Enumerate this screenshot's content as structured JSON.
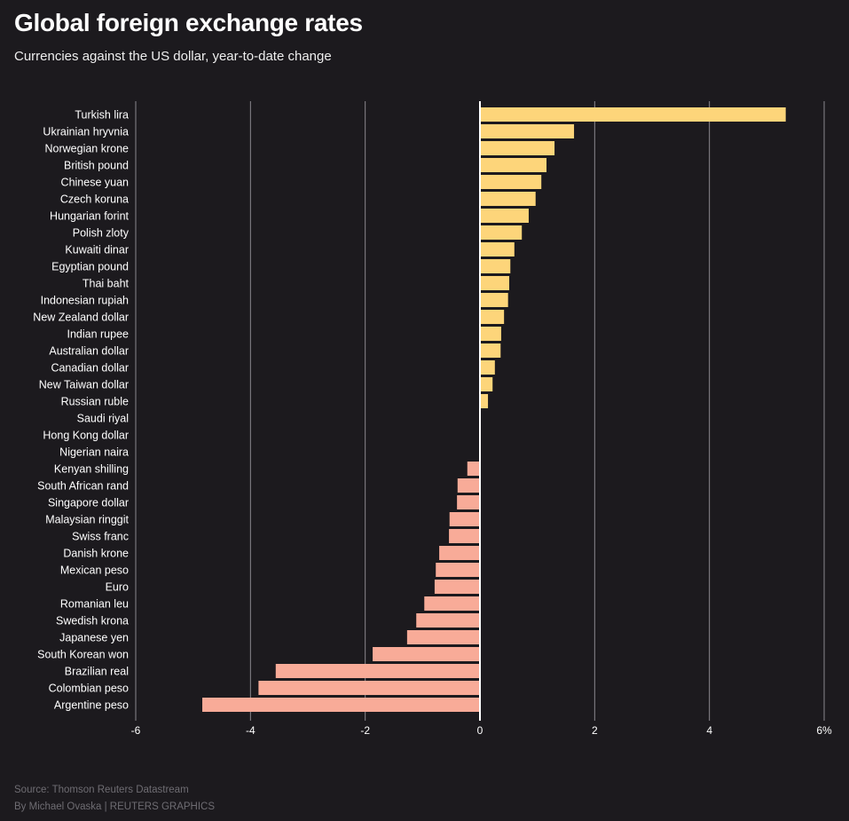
{
  "chart_data": {
    "type": "bar",
    "orientation": "horizontal",
    "title": "Global foreign exchange rates",
    "subtitle": "Currencies against the US dollar, year-to-date change",
    "categories": [
      "Turkish lira",
      "Ukrainian hryvnia",
      "Norwegian krone",
      "British pound",
      "Chinese yuan",
      "Czech koruna",
      "Hungarian forint",
      "Polish zloty",
      "Kuwaiti dinar",
      "Egyptian pound",
      "Thai baht",
      "Indonesian rupiah",
      "New Zealand dollar",
      "Indian rupee",
      "Australian dollar",
      "Canadian dollar",
      "New Taiwan dollar",
      "Russian ruble",
      "Saudi riyal",
      "Hong Kong dollar",
      "Nigerian naira",
      "Kenyan shilling",
      "South African rand",
      "Singapore dollar",
      "Malaysian ringgit",
      "Swiss franc",
      "Danish krone",
      "Mexican peso",
      "Euro",
      "Romanian leu",
      "Swedish krona",
      "Japanese yen",
      "South Korean won",
      "Brazilian real",
      "Colombian peso",
      "Argentine peso"
    ],
    "values": [
      5.33,
      1.64,
      1.3,
      1.16,
      1.07,
      0.97,
      0.85,
      0.73,
      0.6,
      0.53,
      0.51,
      0.49,
      0.42,
      0.37,
      0.36,
      0.26,
      0.22,
      0.14,
      0,
      0,
      0,
      -0.22,
      -0.39,
      -0.4,
      -0.53,
      -0.54,
      -0.71,
      -0.77,
      -0.79,
      -0.97,
      -1.11,
      -1.27,
      -1.87,
      -3.56,
      -3.86,
      -4.84
    ],
    "xlim": [
      -6,
      6
    ],
    "xticks": [
      -6,
      -4,
      -2,
      0,
      2,
      4,
      6
    ],
    "xtick_labels": [
      "-6",
      "-4",
      "-2",
      "0",
      "2",
      "4",
      "6%"
    ],
    "grid": true,
    "colors": {
      "positive": "#fdd57a",
      "negative": "#f8ab98",
      "background": "#1c1a1e"
    }
  },
  "footer": {
    "source": "Source: Thomson Reuters Datastream",
    "credit": "By Michael Ovaska | REUTERS GRAPHICS"
  }
}
